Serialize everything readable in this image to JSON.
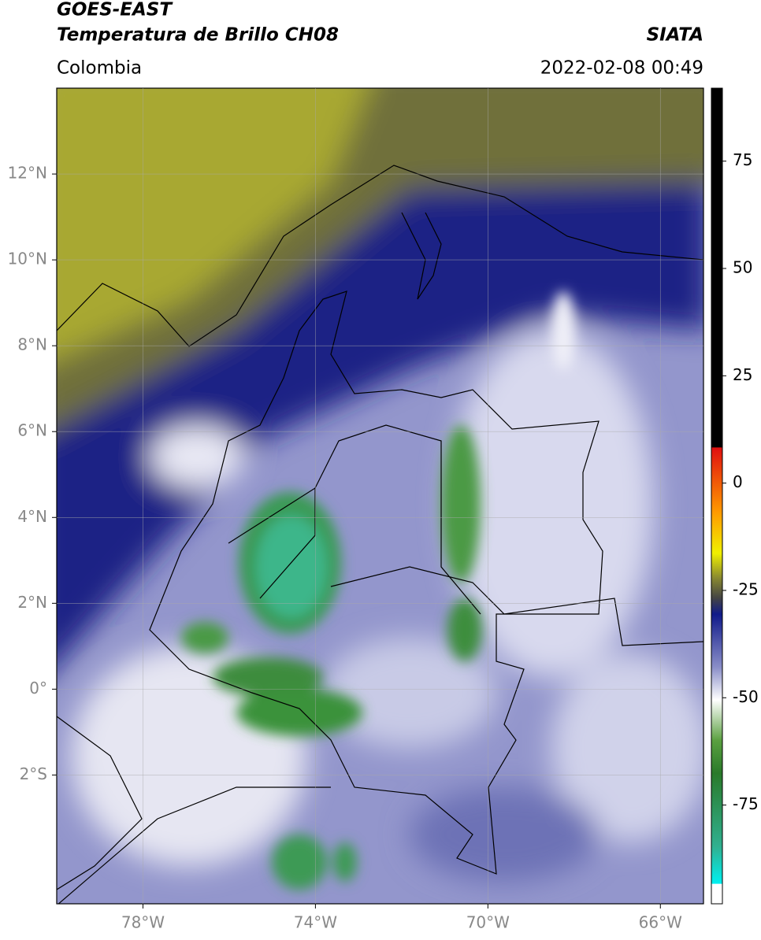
{
  "header": {
    "title_line1": "GOES-EAST",
    "title_line2": "Temperatura de Brillo CH08",
    "region": "Colombia",
    "source": "SIATA",
    "datetime": "2022-02-08 00:49"
  },
  "map": {
    "xlim": [
      -80,
      -65
    ],
    "ylim": [
      -5,
      14
    ],
    "xticks": [
      {
        "value": -78,
        "label": "78°W"
      },
      {
        "value": -74,
        "label": "74°W"
      },
      {
        "value": -70,
        "label": "70°W"
      },
      {
        "value": -66,
        "label": "66°W"
      }
    ],
    "yticks": [
      {
        "value": 12,
        "label": "12°N"
      },
      {
        "value": 10,
        "label": "10°N"
      },
      {
        "value": 8,
        "label": "8°N"
      },
      {
        "value": 6,
        "label": "6°N"
      },
      {
        "value": 4,
        "label": "4°N"
      },
      {
        "value": 2,
        "label": "2°N"
      },
      {
        "value": 0,
        "label": "0°"
      },
      {
        "value": -2,
        "label": "2°S"
      }
    ],
    "grid": true
  },
  "colorbar": {
    "clim": [
      -98,
      92
    ],
    "ticks": [
      75,
      50,
      25,
      0,
      -25,
      -50,
      -75
    ]
  }
}
